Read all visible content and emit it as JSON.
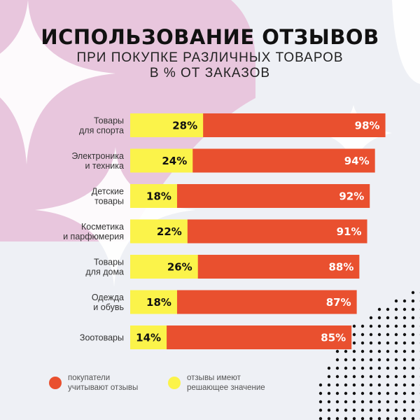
{
  "colors": {
    "background": "#eef0f5",
    "red": "#e9502f",
    "yellow": "#fbf34a",
    "pink": "#e8c6dd",
    "white": "#ffffff",
    "dots": "#111111"
  },
  "title": "ИСПОЛЬЗОВАНИЕ ОТЗЫВОВ",
  "subtitle_line1": "ПРИ ПОКУПКЕ РАЗЛИЧНЫХ ТОВАРОВ",
  "subtitle_line2": "В % ОТ ЗАКАЗОВ",
  "legend": {
    "red_line1": "покупатели",
    "red_line2": "учитывают отзывы",
    "yellow_line1": "отзывы имеют",
    "yellow_line2": "решающее значение"
  },
  "chart_data": {
    "type": "bar",
    "orientation": "horizontal",
    "categories": [
      [
        "Товары",
        "для спорта"
      ],
      [
        "Электроника",
        "и техника"
      ],
      [
        "Детские",
        "товары"
      ],
      [
        "Косметика",
        "и парфюмерия"
      ],
      [
        "Товары",
        "для дома"
      ],
      [
        "Одежда",
        "и обувь"
      ],
      [
        "Зоотовары"
      ]
    ],
    "series": [
      {
        "name": "покупатели учитывают отзывы",
        "color": "#e9502f",
        "values": [
          98,
          94,
          92,
          91,
          88,
          87,
          85
        ],
        "labels": [
          "98%",
          "94%",
          "92%",
          "91%",
          "88%",
          "87%",
          "85%"
        ]
      },
      {
        "name": "отзывы имеют решающее значение",
        "color": "#fbf34a",
        "values": [
          28,
          24,
          18,
          22,
          26,
          18,
          14
        ],
        "labels": [
          "28%",
          "24%",
          "18%",
          "22%",
          "26%",
          "18%",
          "14%"
        ]
      }
    ],
    "xlim": [
      0,
      100
    ],
    "grid": false,
    "legend_position": "bottom-left"
  }
}
